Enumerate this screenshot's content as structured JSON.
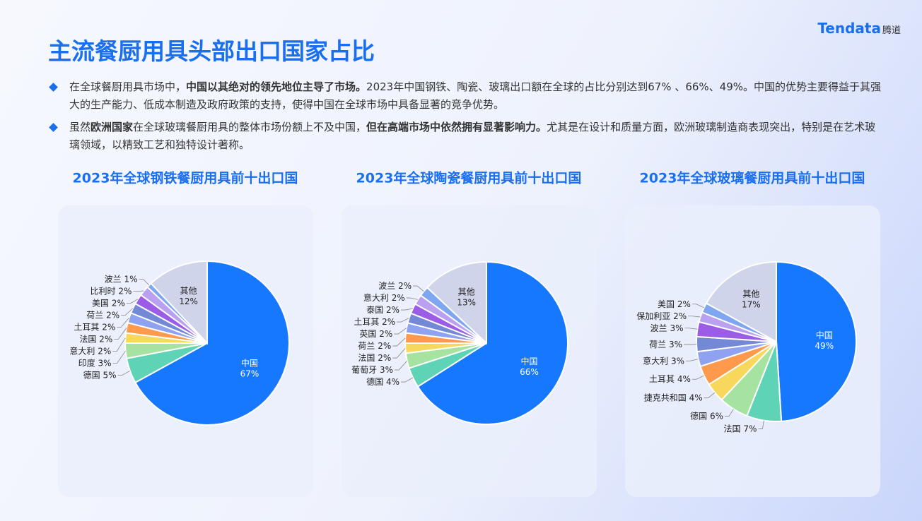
{
  "title": "主流餐厨用具头部出口国家占比",
  "logo": {
    "brand": "Tendata",
    "cn": "腾道"
  },
  "bullets": [
    [
      {
        "text": "在全球餐厨用具市场中，",
        "bold": false
      },
      {
        "text": "中国以其绝对的领先地位主导了市场。",
        "bold": true
      },
      {
        "text": "2023年中国钢铁、陶瓷、玻璃出口额在全球的占比分别达到67% 、66%、49%。中国的优势主要得益于其强大的生产能力、低成本制造及政府政策的支持，使得中国在全球市场中具备显著的竞争优势。",
        "bold": false
      }
    ],
    [
      {
        "text": "虽然",
        "bold": false
      },
      {
        "text": "欧洲国家",
        "bold": true
      },
      {
        "text": "在全球玻璃餐厨用具的整体市场份额上不及中国，",
        "bold": false
      },
      {
        "text": "但在高端市场中依然拥有显著影响力。",
        "bold": true
      },
      {
        "text": "尤其是在设计和质量方面，欧洲玻璃制造商表现突出，特别是在艺术玻璃领域，以精致工艺和独特设计著称。",
        "bold": false
      }
    ]
  ],
  "chart_data": [
    {
      "type": "pie",
      "title": "2023年全球钢铁餐厨用具前十出口国",
      "categories": [
        "中国",
        "德国",
        "印度",
        "意大利",
        "法国",
        "土耳其",
        "荷兰",
        "美国",
        "比利时",
        "波兰",
        "其他"
      ],
      "values": [
        67,
        5,
        3,
        2,
        2,
        2,
        2,
        2,
        2,
        1,
        12
      ],
      "value_labels": [
        "67%",
        "5%",
        "3%",
        "2%",
        "2%",
        "2%",
        "2%",
        "2%",
        "2%",
        "1%",
        "12%"
      ],
      "colors": [
        "#1677ff",
        "#5fd3b5",
        "#a6e3a1",
        "#f7d85c",
        "#ff9a4d",
        "#8fa2f2",
        "#7389d6",
        "#9b5de5",
        "#b9a0f0",
        "#7fa6f0",
        "#cfd4ea"
      ]
    },
    {
      "type": "pie",
      "title": "2023年全球陶瓷餐厨用具前十出口国",
      "categories": [
        "中国",
        "德国",
        "葡萄牙",
        "法国",
        "荷兰",
        "英国",
        "土耳其",
        "泰国",
        "意大利",
        "波兰",
        "其他"
      ],
      "values": [
        66,
        4,
        3,
        2,
        2,
        2,
        2,
        2,
        2,
        2,
        13
      ],
      "value_labels": [
        "66%",
        "4%",
        "3%",
        "2%",
        "2%",
        "2%",
        "2%",
        "2%",
        "2%",
        "2%",
        "13%"
      ],
      "colors": [
        "#1677ff",
        "#5fd3b5",
        "#a6e3a1",
        "#f7d85c",
        "#ff9a4d",
        "#8fa2f2",
        "#7389d6",
        "#9b5de5",
        "#b9a0f0",
        "#7fa6f0",
        "#cfd4ea"
      ]
    },
    {
      "type": "pie",
      "title": "2023年全球玻璃餐厨用具前十出口国",
      "categories": [
        "中国",
        "法国",
        "德国",
        "捷克共和国",
        "土耳其",
        "意大利",
        "荷兰",
        "波兰",
        "保加利亚",
        "美国",
        "其他"
      ],
      "values": [
        49,
        7,
        6,
        4,
        4,
        3,
        3,
        3,
        2,
        2,
        17
      ],
      "value_labels": [
        "49%",
        "7%",
        "6%",
        "4%",
        "4%",
        "3%",
        "3%",
        "3%",
        "2%",
        "2%",
        "17%"
      ],
      "colors": [
        "#1677ff",
        "#5fd3b5",
        "#a6e3a1",
        "#f7d85c",
        "#ff9a4d",
        "#8fa2f2",
        "#7389d6",
        "#9b5de5",
        "#b9a0f0",
        "#7fa6f0",
        "#cfd4ea"
      ]
    }
  ]
}
